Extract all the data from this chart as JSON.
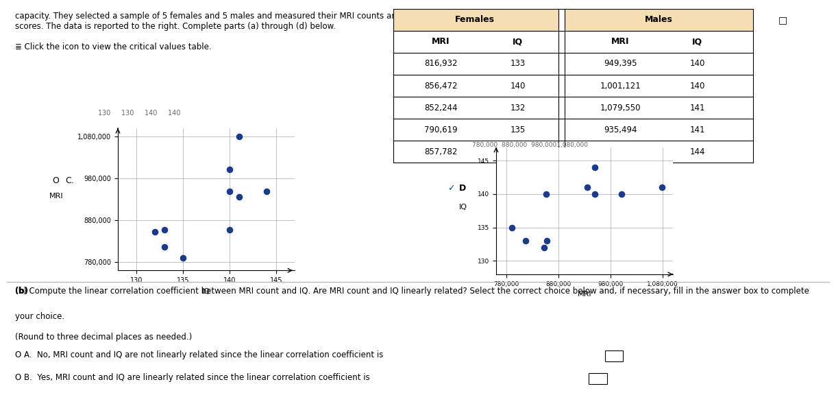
{
  "females": {
    "MRI": [
      816932,
      856472,
      852244,
      790619,
      857782
    ],
    "IQ": [
      133,
      140,
      132,
      135,
      133
    ]
  },
  "males": {
    "MRI": [
      949395,
      1001121,
      1079550,
      935494,
      949589
    ],
    "IQ": [
      140,
      140,
      141,
      141,
      144
    ]
  },
  "dot_color": "#1a3a8a",
  "grid_color": "#aaaaaa",
  "plot_C_ylabel": "MRI",
  "plot_C_xlabel": "IQ",
  "plot_C_yticks": [
    780000,
    880000,
    980000,
    1080000
  ],
  "plot_C_xticks": [
    130,
    135,
    140,
    145
  ],
  "plot_C_ylim": [
    760000,
    1100000
  ],
  "plot_C_xlim": [
    128,
    147
  ],
  "plot_D_ylabel": "IQ",
  "plot_D_xlabel": "MRI",
  "plot_D_yticks": [
    130,
    135,
    140,
    145
  ],
  "plot_D_xticks": [
    780000,
    880000,
    980000,
    1080000
  ],
  "plot_D_ylim": [
    128,
    147
  ],
  "plot_D_xlim": [
    760000,
    1100000
  ],
  "label_C": "C.",
  "label_D": "D",
  "top_text_line1": "capacity. They selected a sample of 5 females and 5 males and measured their MRI counts and IQ",
  "top_text_line2": "scores. The data is reported to the right. Complete parts (a) through (d) below.",
  "top_text_line3": "≣ Click the icon to view the critical values table.",
  "prev_axis_ticks": "130     130     140     140",
  "prev_axis_label": "IQ",
  "small_axis_ticks": "780,000  880,000  980,0001,080,000",
  "small_axis_label": "MRI",
  "part_b_line1": "(b) Compute the linear correlation coefficient between MRI count and IQ. Are MRI count and IQ linearly related? Select the correct choice below and, if necessary, fill in the answer box to complete",
  "part_b_line2": "your choice.",
  "part_b_line3": "(Round to three decimal places as needed.)",
  "choice_A": "O A.  No, MRI count and IQ are not linearly related since the linear correlation coefficient is",
  "choice_B": "O B.  Yes, MRI count and IQ are linearly related since the linear correlation coefficient is"
}
